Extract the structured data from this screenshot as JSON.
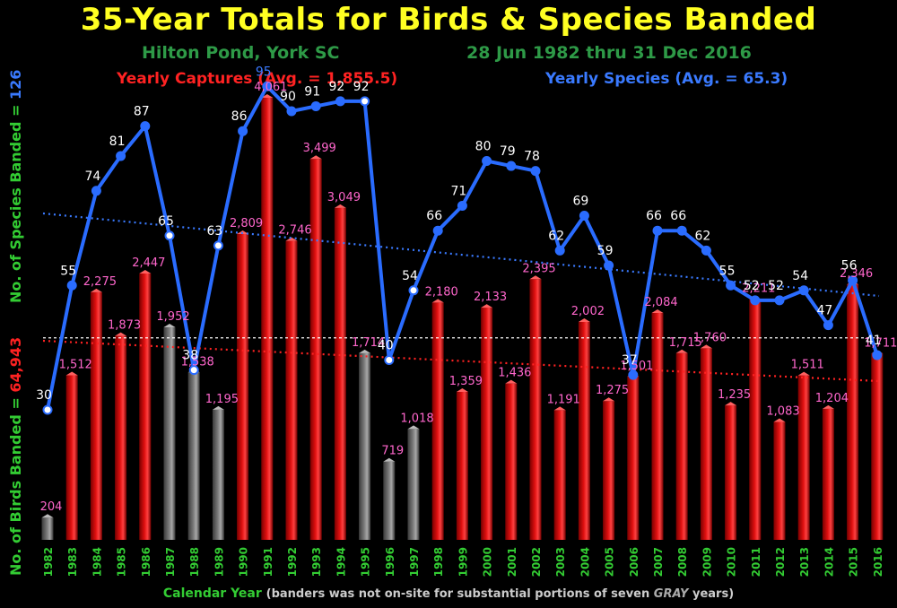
{
  "header": {
    "title": "35-Year Totals for Birds & Species Banded",
    "location": "Hilton Pond, York SC",
    "date_range": "28 Jun 1982 thru 31 Dec 2016",
    "captures_caption": "Yearly Captures (Avg. = 1,855.5)",
    "species_caption": "Yearly Species  (Avg. = 65.3)"
  },
  "axes": {
    "left_label_prefix": "No. of Birds Banded = ",
    "left_label_total": "64,943",
    "right_label_prefix": "No. of Species Banded = ",
    "right_label_total": "126",
    "x_label_main": "Calendar Year",
    "x_label_note_pre": "(banders was not on-site for substantial portions of seven ",
    "x_label_gray": "GRAY",
    "x_label_note_post": " years)"
  },
  "colors": {
    "title": "#ffff22",
    "subtitle": "#2e9a47",
    "bars_red": "#e01010",
    "bars_gray": "#7a7a7a",
    "species_line": "#2a6cff",
    "bar_label": "#ff66cc",
    "species_label": "#ffffff",
    "year_label": "#33cc33",
    "captures_text": "#ff2222",
    "species_text": "#3a7aff",
    "left_axis_text": "#33cc33",
    "left_axis_total": "#ff2222",
    "right_axis_total": "#3a7aff"
  },
  "chart_data": {
    "type": "bar",
    "categories": [
      "1982",
      "1983",
      "1984",
      "1985",
      "1986",
      "1987",
      "1988",
      "1989",
      "1990",
      "1991",
      "1992",
      "1993",
      "1994",
      "1995",
      "1996",
      "1997",
      "1998",
      "1999",
      "2000",
      "2001",
      "2002",
      "2003",
      "2004",
      "2005",
      "2006",
      "2007",
      "2008",
      "2009",
      "2010",
      "2011",
      "2012",
      "2013",
      "2014",
      "2015",
      "2016"
    ],
    "series": [
      {
        "name": "Yearly Captures",
        "type": "bar",
        "values": [
          204,
          1512,
          2275,
          1873,
          2447,
          1952,
          1538,
          1195,
          2809,
          4061,
          2746,
          3499,
          3049,
          1714,
          719,
          1018,
          2180,
          1359,
          2133,
          1436,
          2395,
          1191,
          2002,
          1275,
          1501,
          2084,
          1715,
          1760,
          1235,
          2211,
          1083,
          1511,
          1204,
          2346,
          1711
        ],
        "labels": [
          "204",
          "1,512",
          "2,275",
          "1,873",
          "2,447",
          "1,952",
          "1,538",
          "1,195",
          "2,809",
          "4,061",
          "2,746",
          "3,499",
          "3,049",
          "1,714",
          "719",
          "1,018",
          "2,180",
          "1,359",
          "2,133",
          "1,436",
          "2,395",
          "1,191",
          "2,002",
          "1,275",
          "1,501",
          "2,084",
          "1,715",
          "1,760",
          "1,235",
          "2,211",
          "1,083",
          "1,511",
          "1,204",
          "2,346",
          "1,711"
        ],
        "gray_years": [
          "1982",
          "1987",
          "1988",
          "1989",
          "1995",
          "1996",
          "1997"
        ]
      },
      {
        "name": "Yearly Species",
        "type": "line",
        "values": [
          30,
          55,
          74,
          81,
          87,
          65,
          38,
          63,
          86,
          95,
          90,
          91,
          92,
          92,
          40,
          54,
          66,
          71,
          80,
          79,
          78,
          62,
          69,
          59,
          37,
          66,
          66,
          62,
          55,
          52,
          52,
          54,
          47,
          56,
          41
        ],
        "labels": [
          "30",
          "55",
          "74",
          "81",
          "87",
          "65",
          "38",
          "63",
          "86",
          "95",
          "90",
          "91",
          "92",
          "92",
          "40",
          "54",
          "66",
          "71",
          "80",
          "79",
          "78",
          "62",
          "69",
          "59",
          "37",
          "66",
          "66",
          "62",
          "55",
          "52",
          "52",
          "54",
          "47",
          "56",
          "41"
        ],
        "open_markers": [
          "1982",
          "1987",
          "1988",
          "1989",
          "1995",
          "1996",
          "1997"
        ]
      }
    ],
    "averages": {
      "captures": 1855.5,
      "species": 65.3
    },
    "trendlines": [
      "captures",
      "species"
    ],
    "ylim_left": [
      0,
      4300
    ],
    "ylim_right": [
      20,
      100
    ],
    "grid": false
  }
}
